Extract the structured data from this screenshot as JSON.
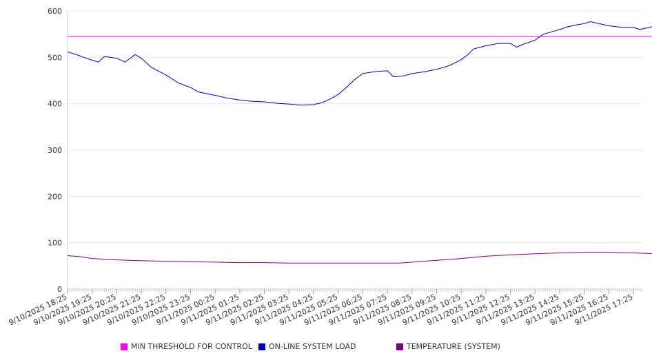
{
  "chart_data": {
    "type": "line",
    "ylim": [
      0,
      600
    ],
    "yticks": [
      0,
      100,
      200,
      300,
      400,
      500,
      600
    ],
    "x_tick_labels": [
      "9/10/2025 18:25",
      "9/10/2025 19:25",
      "9/10/2025 20:25",
      "9/10/2025 21:25",
      "9/10/2025 22:25",
      "9/10/2025 23:25",
      "9/11/2025 00:25",
      "9/11/2025 01:25",
      "9/11/2025 02:25",
      "9/11/2025 03:25",
      "9/11/2025 04:25",
      "9/11/2025 05:25",
      "9/11/2025 06:25",
      "9/11/2025 07:25",
      "9/11/2025 08:25",
      "9/11/2025 09:25",
      "9/11/2025 10:25",
      "9/11/2025 11:25",
      "9/11/2025 12:25",
      "9/11/2025 13:25",
      "9/11/2025 14:25",
      "9/11/2025 15:25",
      "9/11/2025 16:25",
      "9/11/2025 17:25"
    ],
    "grid": "horizontal",
    "legend_position": "bottom",
    "series": [
      {
        "name": "MIN THRESHOLD FOR CONTROL",
        "color": "#ff00ff",
        "points": [
          [
            "9/10/2025 18:25",
            545
          ],
          [
            "9/11/2025 18:25",
            545
          ]
        ]
      },
      {
        "name": "ON-LINE SYSTEM LOAD",
        "color": "#0000cc",
        "points": [
          [
            "9/10/2025 18:25",
            512
          ],
          [
            "9/10/2025 18:50",
            505
          ],
          [
            "9/10/2025 19:10",
            498
          ],
          [
            "9/10/2025 19:40",
            490
          ],
          [
            "9/10/2025 19:55",
            502
          ],
          [
            "9/10/2025 20:25",
            498
          ],
          [
            "9/10/2025 20:45",
            490
          ],
          [
            "9/10/2025 21:10",
            506
          ],
          [
            "9/10/2025 21:25",
            498
          ],
          [
            "9/10/2025 21:50",
            478
          ],
          [
            "9/10/2025 22:25",
            462
          ],
          [
            "9/10/2025 22:55",
            445
          ],
          [
            "9/10/2025 23:25",
            435
          ],
          [
            "9/10/2025 23:45",
            425
          ],
          [
            "9/11/2025 00:25",
            418
          ],
          [
            "9/11/2025 00:55",
            412
          ],
          [
            "9/11/2025 01:25",
            408
          ],
          [
            "9/11/2025 01:55",
            405
          ],
          [
            "9/11/2025 02:25",
            404
          ],
          [
            "9/11/2025 02:55",
            401
          ],
          [
            "9/11/2025 03:25",
            399
          ],
          [
            "9/11/2025 03:55",
            397
          ],
          [
            "9/11/2025 04:25",
            398
          ],
          [
            "9/11/2025 04:45",
            402
          ],
          [
            "9/11/2025 05:10",
            412
          ],
          [
            "9/11/2025 05:25",
            420
          ],
          [
            "9/11/2025 05:45",
            435
          ],
          [
            "9/11/2025 06:05",
            452
          ],
          [
            "9/11/2025 06:25",
            465
          ],
          [
            "9/11/2025 06:45",
            468
          ],
          [
            "9/11/2025 07:05",
            470
          ],
          [
            "9/11/2025 07:25",
            471
          ],
          [
            "9/11/2025 07:40",
            458
          ],
          [
            "9/11/2025 08:05",
            460
          ],
          [
            "9/11/2025 08:25",
            465
          ],
          [
            "9/11/2025 08:55",
            469
          ],
          [
            "9/11/2025 09:25",
            474
          ],
          [
            "9/11/2025 09:55",
            482
          ],
          [
            "9/11/2025 10:25",
            495
          ],
          [
            "9/11/2025 10:40",
            505
          ],
          [
            "9/11/2025 10:55",
            518
          ],
          [
            "9/11/2025 11:25",
            525
          ],
          [
            "9/11/2025 11:55",
            530
          ],
          [
            "9/11/2025 12:25",
            530
          ],
          [
            "9/11/2025 12:40",
            522
          ],
          [
            "9/11/2025 12:55",
            528
          ],
          [
            "9/11/2025 13:25",
            537
          ],
          [
            "9/11/2025 13:45",
            550
          ],
          [
            "9/11/2025 14:05",
            555
          ],
          [
            "9/11/2025 14:25",
            560
          ],
          [
            "9/11/2025 14:45",
            566
          ],
          [
            "9/11/2025 15:05",
            570
          ],
          [
            "9/11/2025 15:25",
            573
          ],
          [
            "9/11/2025 15:40",
            577
          ],
          [
            "9/11/2025 16:05",
            572
          ],
          [
            "9/11/2025 16:25",
            568
          ],
          [
            "9/11/2025 16:55",
            565
          ],
          [
            "9/11/2025 17:25",
            565
          ],
          [
            "9/11/2025 17:40",
            560
          ],
          [
            "9/11/2025 18:05",
            565
          ],
          [
            "9/11/2025 18:25",
            570
          ]
        ]
      },
      {
        "name": "TEMPERATURE (SYSTEM)",
        "color": "#800080",
        "points": [
          [
            "9/10/2025 18:25",
            72
          ],
          [
            "9/10/2025 18:55",
            70
          ],
          [
            "9/10/2025 19:25",
            66
          ],
          [
            "9/10/2025 20:25",
            63
          ],
          [
            "9/10/2025 21:25",
            61
          ],
          [
            "9/10/2025 22:25",
            60
          ],
          [
            "9/10/2025 23:25",
            59
          ],
          [
            "9/11/2025 00:25",
            58
          ],
          [
            "9/11/2025 01:25",
            57
          ],
          [
            "9/11/2025 02:25",
            57
          ],
          [
            "9/11/2025 03:25",
            56
          ],
          [
            "9/11/2025 04:25",
            56
          ],
          [
            "9/11/2025 05:25",
            56
          ],
          [
            "9/11/2025 06:25",
            56
          ],
          [
            "9/11/2025 07:25",
            56
          ],
          [
            "9/11/2025 07:55",
            56
          ],
          [
            "9/11/2025 08:25",
            58
          ],
          [
            "9/11/2025 09:25",
            62
          ],
          [
            "9/11/2025 10:25",
            66
          ],
          [
            "9/11/2025 11:25",
            71
          ],
          [
            "9/11/2025 12:25",
            74
          ],
          [
            "9/11/2025 13:25",
            76
          ],
          [
            "9/11/2025 14:25",
            78
          ],
          [
            "9/11/2025 15:25",
            79
          ],
          [
            "9/11/2025 16:25",
            79
          ],
          [
            "9/11/2025 17:25",
            78
          ],
          [
            "9/11/2025 18:25",
            76
          ]
        ]
      }
    ]
  }
}
